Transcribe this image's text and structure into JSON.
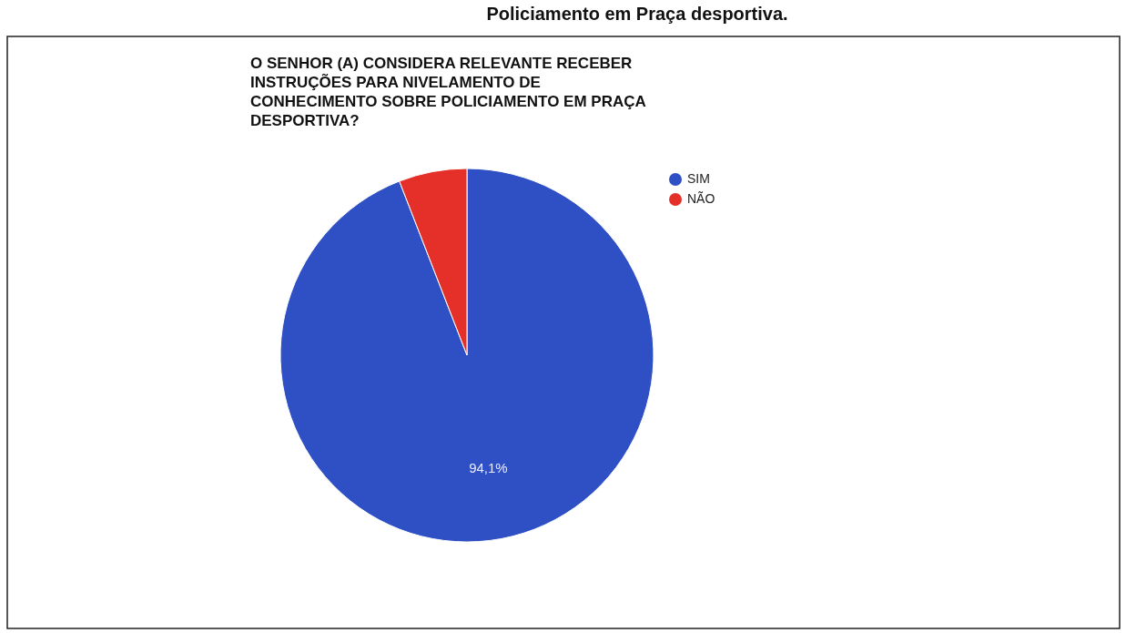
{
  "chart_data": {
    "type": "pie",
    "title": "O SENHOR (A) CONSIDERA RELEVANTE RECEBER INSTRUÇÕES PARA NIVELAMENTO DE CONHECIMENTO SOBRE POLICIAMENTO EM PRAÇA DESPORTIVA?",
    "annotations": [
      "Policiamento em Praça desportiva."
    ],
    "categories": [
      "SIM",
      "NÃO"
    ],
    "values": [
      94.1,
      5.9
    ],
    "colors": [
      "#2f4fc4",
      "#e5302a"
    ],
    "value_labels": [
      "94,1%",
      null
    ],
    "legend": "right"
  }
}
